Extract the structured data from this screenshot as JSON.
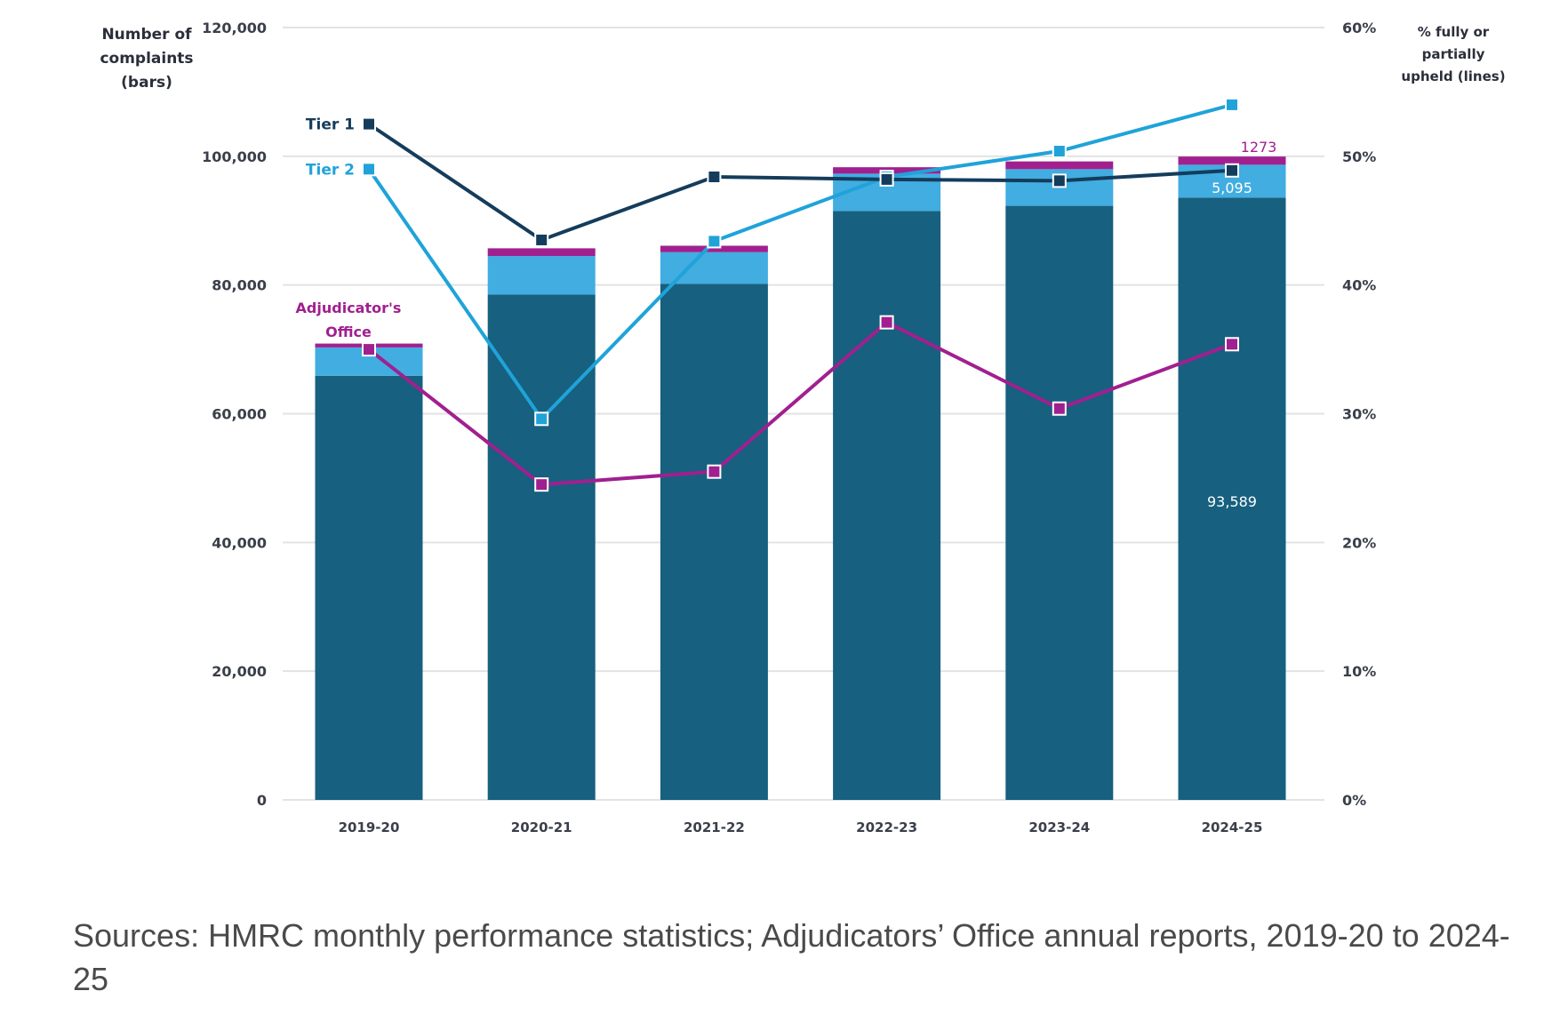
{
  "chart_data": {
    "type": "bar",
    "subtype": "stacked bar with lines on secondary axis",
    "categories": [
      "2019-20",
      "2020-21",
      "2021-22",
      "2022-23",
      "2023-24",
      "2024-25"
    ],
    "left_axis": {
      "title": [
        "Number of",
        "complaints",
        "(bars)"
      ],
      "ylim": [
        0,
        120000
      ],
      "ticks": [
        0,
        20000,
        40000,
        60000,
        80000,
        100000,
        120000
      ],
      "tick_labels": [
        "0",
        "20,000",
        "40,000",
        "60,000",
        "80,000",
        "100,000",
        "120,000"
      ]
    },
    "right_axis": {
      "title": [
        "% fully or",
        "partially",
        "upheld (lines)"
      ],
      "ylim": [
        0,
        60
      ],
      "ticks": [
        0,
        10,
        20,
        30,
        40,
        50,
        60
      ],
      "tick_labels": [
        "0%",
        "10%",
        "20%",
        "30%",
        "40%",
        "50%",
        "60%"
      ]
    },
    "grid": true,
    "bar_series": [
      {
        "name": "Tier 1 complaints",
        "color": "#17607f",
        "values": [
          65900,
          78500,
          80200,
          91500,
          92300,
          93589
        ]
      },
      {
        "name": "Tier 2 complaints",
        "color": "#41ade0",
        "values": [
          4400,
          6000,
          4900,
          5800,
          5700,
          5095
        ]
      },
      {
        "name": "Adjudicator's Office complaints",
        "color": "#a0208f",
        "values": [
          600,
          1200,
          1000,
          1000,
          1200,
          1273
        ]
      }
    ],
    "line_series": [
      {
        "name": "Tier 1",
        "label": "Tier 1",
        "color": "#143c5c",
        "values": [
          52.5,
          43.5,
          48.4,
          48.2,
          48.1,
          48.9
        ]
      },
      {
        "name": "Tier 2",
        "label": "Tier 2",
        "color": "#1fa3d9",
        "values": [
          49.0,
          29.6,
          43.4,
          48.4,
          50.4,
          54.0
        ]
      },
      {
        "name": "Adjudicator's Office",
        "label": [
          "Adjudicator's",
          "Office"
        ],
        "color": "#a0208f",
        "values": [
          35.0,
          24.5,
          25.5,
          37.1,
          30.4,
          35.4
        ]
      }
    ],
    "data_labels": [
      {
        "category": "2024-25",
        "series": "Adjudicator's Office complaints",
        "text": "1273",
        "color": "#a0208f"
      },
      {
        "category": "2024-25",
        "series": "Tier 2 complaints",
        "text": "5,095",
        "color": "#ffffff"
      },
      {
        "category": "2024-25",
        "series": "Tier 1 complaints",
        "text": "93,589",
        "color": "#ffffff"
      }
    ],
    "legend": "inline labels at first data point (left)"
  },
  "source_text": "Sources: HMRC monthly performance statistics; Adjudicators’ Office annual reports, 2019-20 to 2024-25"
}
